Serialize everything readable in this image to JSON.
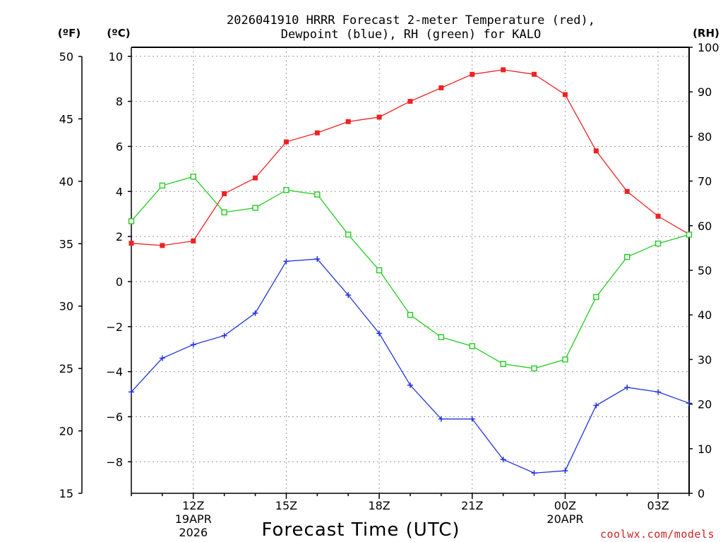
{
  "chart_data": {
    "type": "line",
    "title_line1": "2026041910 HRRR Forecast 2-meter Temperature (red),",
    "title_line2": "Dewpoint (blue), RH (green) for KALO",
    "left_outer_label": "(ºF)",
    "left_inner_label": "(ºC)",
    "right_label": "(RH)",
    "xlabel": "Forecast Time (UTC)",
    "credit": "coolwx.com/models",
    "x_hours": [
      0,
      1,
      2,
      3,
      4,
      5,
      6,
      7,
      8,
      9,
      10,
      11,
      12,
      13,
      14,
      15,
      16,
      17,
      18
    ],
    "x_tick_labels": [
      {
        "hour": 2,
        "lines": [
          "12Z",
          "19APR",
          "2026"
        ]
      },
      {
        "hour": 5,
        "lines": [
          "15Z"
        ]
      },
      {
        "hour": 8,
        "lines": [
          "18Z"
        ]
      },
      {
        "hour": 11,
        "lines": [
          "21Z"
        ]
      },
      {
        "hour": 14,
        "lines": [
          "00Z",
          "20APR"
        ]
      },
      {
        "hour": 17,
        "lines": [
          "03Z"
        ]
      }
    ],
    "xlim": [
      0,
      18
    ],
    "ylim_c": [
      -9.4,
      10.4
    ],
    "yticks_c": [
      10,
      8,
      6,
      4,
      2,
      0,
      -2,
      -4,
      -6,
      -8
    ],
    "yticks_c_labels": [
      "10",
      "8",
      "6",
      "4",
      "2",
      "0",
      "−2",
      "−4",
      "−6",
      "−8"
    ],
    "ylim_f": [
      15,
      50
    ],
    "yticks_f": [
      50,
      45,
      40,
      35,
      30,
      25,
      20,
      15
    ],
    "ylim_rh": [
      0,
      100
    ],
    "yticks_rh": [
      100,
      90,
      80,
      70,
      60,
      50,
      40,
      30,
      20,
      10,
      0
    ],
    "grid": true,
    "series": [
      {
        "name": "Temperature",
        "unit": "C",
        "color": "#ee2222",
        "marker": "filled-square",
        "values": [
          1.7,
          1.6,
          1.8,
          3.9,
          4.6,
          6.2,
          6.6,
          7.1,
          7.3,
          8.0,
          8.6,
          9.2,
          9.4,
          9.2,
          8.3,
          5.8,
          4.0,
          2.9,
          2.1
        ]
      },
      {
        "name": "Dewpoint",
        "unit": "C",
        "color": "#2233dd",
        "marker": "plus",
        "values": [
          -4.9,
          -3.4,
          -2.8,
          -2.4,
          -1.4,
          0.9,
          1.0,
          -0.6,
          -2.3,
          -4.6,
          -6.1,
          -6.1,
          -7.9,
          -8.5,
          -8.4,
          -5.5,
          -4.7,
          -4.9,
          -5.4
        ]
      },
      {
        "name": "RH",
        "unit": "%",
        "color": "#22cc22",
        "marker": "open-square",
        "values": [
          61,
          69,
          71,
          63,
          64,
          68,
          67,
          58,
          50,
          40,
          35,
          33,
          29,
          28,
          30,
          44,
          53,
          56,
          58
        ]
      }
    ]
  }
}
